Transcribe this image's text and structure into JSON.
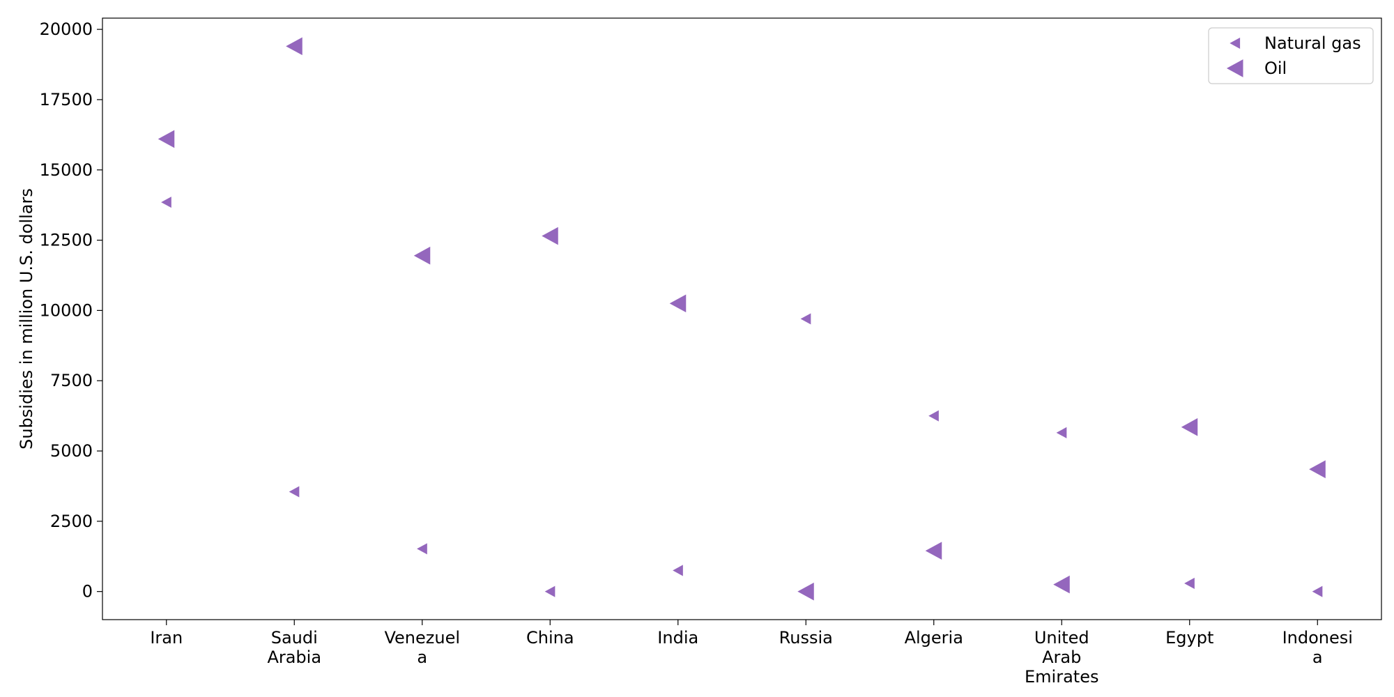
{
  "chart_data": {
    "type": "scatter",
    "title": "",
    "xlabel": "",
    "ylabel": "Subsidies in million U.S. dollars",
    "categories": [
      "Iran",
      "Saudi Arabia",
      "Venezuela",
      "China",
      "India",
      "Russia",
      "Algeria",
      "United Arab Emirates",
      "Egypt",
      "Indonesia"
    ],
    "category_label_lines": [
      [
        "Iran"
      ],
      [
        "Saudi",
        "Arabia"
      ],
      [
        "Venezuel",
        "a"
      ],
      [
        "China"
      ],
      [
        "India"
      ],
      [
        "Russia"
      ],
      [
        "Algeria"
      ],
      [
        "United",
        "Arab",
        "Emirates"
      ],
      [
        "Egypt"
      ],
      [
        "Indonesi",
        "a"
      ]
    ],
    "ylim": [
      -1000,
      20400
    ],
    "yticks": [
      0,
      2500,
      5000,
      7500,
      10000,
      12500,
      15000,
      17500,
      20000
    ],
    "grid": false,
    "legend_position": "top-right",
    "marker": "triangle-left",
    "series": [
      {
        "name": "Natural gas",
        "values": [
          13850,
          3550,
          1520,
          0,
          750,
          9700,
          6250,
          5650,
          290,
          0
        ],
        "color": "#9467bd",
        "marker_size": "small"
      },
      {
        "name": "Oil",
        "values": [
          16100,
          19400,
          11950,
          12650,
          10250,
          0,
          1450,
          250,
          5850,
          4350
        ],
        "color": "#9467bd",
        "marker_size": "large"
      }
    ]
  }
}
